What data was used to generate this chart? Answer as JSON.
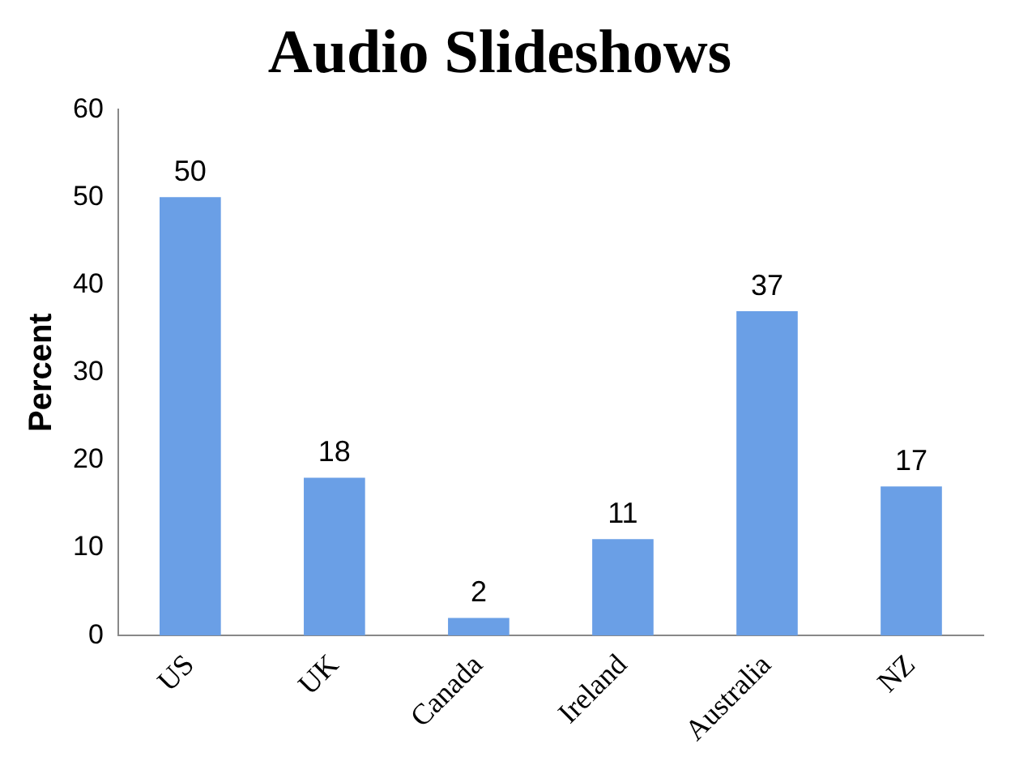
{
  "chart_data": {
    "type": "bar",
    "title": "Audio Slideshows",
    "ylabel": "Percent",
    "categories": [
      "US",
      "UK",
      "Canada",
      "Ireland",
      "Australia",
      "NZ"
    ],
    "values": [
      50,
      18,
      2,
      11,
      37,
      17
    ],
    "color": "#6a9fe6",
    "ylim": [
      0,
      60
    ],
    "yticks": [
      0,
      10,
      20,
      30,
      40,
      50,
      60
    ],
    "grid": false,
    "legend": false,
    "data_labels": true
  }
}
